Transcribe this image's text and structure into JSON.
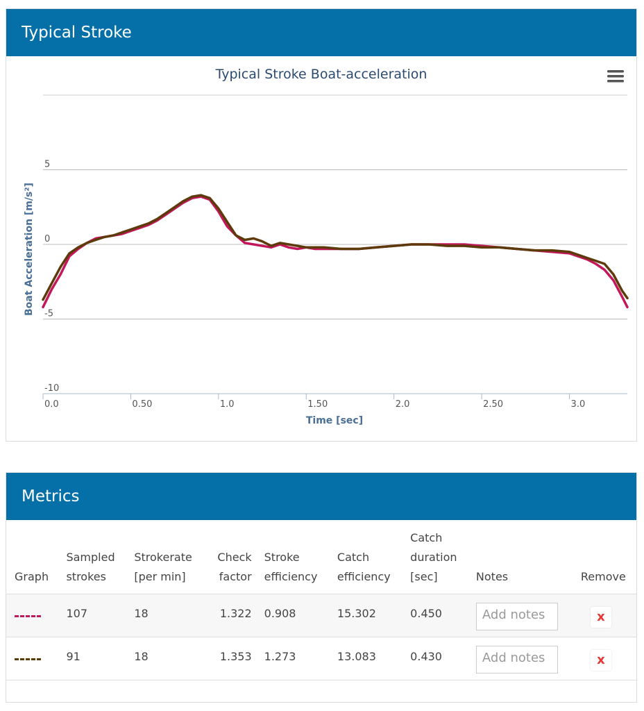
{
  "stroke_panel": {
    "title": "Typical Stroke"
  },
  "metrics_panel": {
    "title": "Metrics",
    "headers": {
      "graph": "Graph",
      "sampled": [
        "Sampled",
        "strokes"
      ],
      "strokerate": [
        "Strokerate",
        "[per min]"
      ],
      "check": [
        "Check",
        "factor"
      ],
      "stroke_eff": [
        "Stroke",
        "efficiency"
      ],
      "catch_eff": [
        "Catch",
        "efficiency"
      ],
      "catch_dur": [
        "Catch",
        "duration",
        "[sec]"
      ],
      "notes": "Notes",
      "remove": "Remove"
    },
    "rows": [
      {
        "color": "#c2185b",
        "sampled": "107",
        "strokerate": "18",
        "check": "1.322",
        "stroke_eff": "0.908",
        "catch_eff": "15.302",
        "catch_dur": "0.450",
        "notes_placeholder": "Add notes",
        "remove_label": "x"
      },
      {
        "color": "#5d3a0a",
        "sampled": "91",
        "strokerate": "18",
        "check": "1.353",
        "stroke_eff": "1.273",
        "catch_eff": "13.083",
        "catch_dur": "0.430",
        "notes_placeholder": "Add notes",
        "remove_label": "x"
      }
    ]
  },
  "chart_data": {
    "type": "line",
    "title": "Typical Stroke Boat-acceleration",
    "xlabel": "Time [sec]",
    "ylabel": "Boat Acceleration [m/s²]",
    "xlim": [
      0,
      3.33
    ],
    "ylim": [
      -10,
      10
    ],
    "x_ticks": [
      0,
      0.5,
      1.0,
      1.5,
      2.0,
      2.5,
      3.0
    ],
    "x_tick_labels": [
      "0.0",
      "0.50",
      "1.0",
      "1.50",
      "2.0",
      "2.50",
      "3.0"
    ],
    "y_ticks": [
      5,
      0,
      -5,
      -10
    ],
    "y_tick_labels": [
      "5",
      "0",
      "-5",
      "-10"
    ],
    "series": [
      {
        "name": "107 strokes",
        "color": "#c2185b",
        "x": [
          0,
          0.05,
          0.1,
          0.15,
          0.2,
          0.25,
          0.3,
          0.35,
          0.4,
          0.45,
          0.5,
          0.55,
          0.6,
          0.65,
          0.7,
          0.75,
          0.8,
          0.85,
          0.9,
          0.95,
          1.0,
          1.05,
          1.1,
          1.15,
          1.2,
          1.25,
          1.3,
          1.35,
          1.4,
          1.45,
          1.5,
          1.55,
          1.6,
          1.7,
          1.8,
          1.9,
          2.0,
          2.1,
          2.2,
          2.3,
          2.4,
          2.5,
          2.6,
          2.7,
          2.8,
          2.9,
          3.0,
          3.05,
          3.1,
          3.15,
          3.2,
          3.25,
          3.3,
          3.33
        ],
        "y": [
          -4.2,
          -3.0,
          -2.0,
          -0.8,
          -0.3,
          0.1,
          0.4,
          0.5,
          0.6,
          0.7,
          0.9,
          1.1,
          1.3,
          1.6,
          2.0,
          2.4,
          2.8,
          3.1,
          3.2,
          3.0,
          2.2,
          1.2,
          0.6,
          0.1,
          0.0,
          -0.1,
          -0.2,
          0.0,
          -0.2,
          -0.3,
          -0.2,
          -0.3,
          -0.3,
          -0.3,
          -0.3,
          -0.2,
          -0.1,
          0.0,
          0.0,
          0.0,
          0.0,
          -0.1,
          -0.2,
          -0.3,
          -0.4,
          -0.5,
          -0.6,
          -0.8,
          -1.0,
          -1.3,
          -1.7,
          -2.4,
          -3.5,
          -4.2
        ]
      },
      {
        "name": "91 strokes",
        "color": "#5d3a0a",
        "x": [
          0,
          0.05,
          0.1,
          0.15,
          0.2,
          0.25,
          0.3,
          0.35,
          0.4,
          0.45,
          0.5,
          0.55,
          0.6,
          0.65,
          0.7,
          0.75,
          0.8,
          0.85,
          0.9,
          0.95,
          1.0,
          1.05,
          1.1,
          1.15,
          1.2,
          1.25,
          1.3,
          1.35,
          1.4,
          1.45,
          1.5,
          1.55,
          1.6,
          1.7,
          1.8,
          1.9,
          2.0,
          2.1,
          2.2,
          2.3,
          2.4,
          2.5,
          2.6,
          2.7,
          2.8,
          2.9,
          3.0,
          3.05,
          3.1,
          3.15,
          3.2,
          3.25,
          3.3,
          3.33
        ],
        "y": [
          -3.7,
          -2.6,
          -1.5,
          -0.6,
          -0.2,
          0.1,
          0.3,
          0.5,
          0.6,
          0.8,
          1.0,
          1.2,
          1.4,
          1.7,
          2.1,
          2.5,
          2.9,
          3.2,
          3.3,
          3.1,
          2.4,
          1.5,
          0.6,
          0.3,
          0.4,
          0.2,
          -0.1,
          0.1,
          0.0,
          -0.1,
          -0.2,
          -0.2,
          -0.2,
          -0.3,
          -0.3,
          -0.2,
          -0.1,
          0.0,
          0.0,
          -0.1,
          -0.1,
          -0.2,
          -0.2,
          -0.3,
          -0.4,
          -0.4,
          -0.5,
          -0.7,
          -0.9,
          -1.1,
          -1.3,
          -2.0,
          -3.1,
          -3.6
        ]
      }
    ]
  }
}
